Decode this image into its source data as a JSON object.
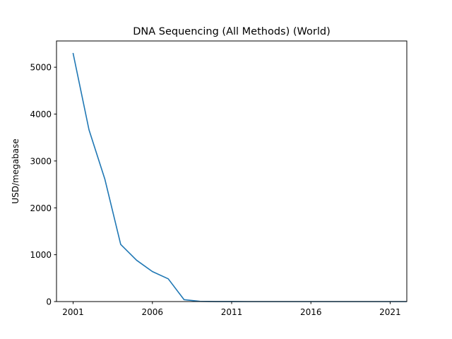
{
  "chart_data": {
    "type": "line",
    "title": "DNA Sequencing (All Methods) (World)",
    "xlabel": "",
    "ylabel": "USD/megabase",
    "xlim": [
      1999.95,
      2022.05
    ],
    "ylim": [
      0,
      5560
    ],
    "x_ticks": [
      2001,
      2006,
      2011,
      2016,
      2021
    ],
    "y_ticks": [
      0,
      1000,
      2000,
      3000,
      4000,
      5000
    ],
    "grid": false,
    "legend": "none",
    "series": [
      {
        "color": "#1f77b4",
        "x": [
          2001,
          2002,
          2003,
          2004,
          2005,
          2006,
          2007,
          2008,
          2009,
          2010,
          2011,
          2012,
          2013,
          2014,
          2015,
          2016,
          2017,
          2018,
          2019,
          2020,
          2021,
          2022
        ],
        "y": [
          5292,
          3665,
          2613,
          1220,
          882,
          640,
          485,
          40,
          5,
          0.8,
          0.5,
          0.1,
          0.06,
          0.05,
          0.02,
          0.01,
          0.01,
          0.01,
          0.01,
          0.01,
          0.006,
          0.006
        ]
      }
    ]
  }
}
